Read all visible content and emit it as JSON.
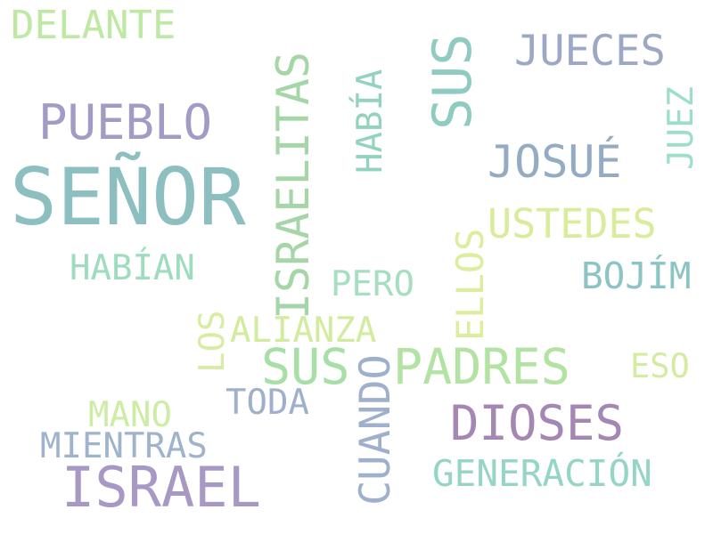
{
  "words": [
    {
      "id": "senor",
      "text": "SEÑOR",
      "color": "#8dbfc1"
    },
    {
      "id": "israel",
      "text": "ISRAEL",
      "color": "#a898c4"
    },
    {
      "id": "israelitas",
      "text": "ISRAELITAS",
      "color": "#a6d6a8"
    },
    {
      "id": "sus_h",
      "text": "SUS",
      "color": "#a7dfa7"
    },
    {
      "id": "padres",
      "text": "PADRES",
      "color": "#b3e3a2"
    },
    {
      "id": "sus_v",
      "text": "SUS",
      "color": "#8fcbc0"
    },
    {
      "id": "dioses",
      "text": "DIOSES",
      "color": "#a487b3"
    },
    {
      "id": "pueblo",
      "text": "PUEBLO",
      "color": "#a39bc4"
    },
    {
      "id": "josue",
      "text": "JOSUÉ",
      "color": "#94abc4"
    },
    {
      "id": "jueces",
      "text": "JUECES",
      "color": "#9ca8c6"
    },
    {
      "id": "ustedes",
      "text": "USTEDES",
      "color": "#d8ec9a"
    },
    {
      "id": "delante",
      "text": "DELANTE",
      "color": "#bee9a4"
    },
    {
      "id": "cuando",
      "text": "CUANDO",
      "color": "#9fb0cc"
    },
    {
      "id": "generacion",
      "text": "GENERACIÓN",
      "color": "#94d5c3"
    },
    {
      "id": "bojim",
      "text": "BOJÍM",
      "color": "#8cc4c4"
    },
    {
      "id": "ellos",
      "text": "ELLOS",
      "color": "#dcee9e"
    },
    {
      "id": "habian",
      "text": "HABÍAN",
      "color": "#9ddcbe"
    },
    {
      "id": "habia",
      "text": "HABÍA",
      "color": "#93d3bd"
    },
    {
      "id": "pero",
      "text": "PERO",
      "color": "#a6dfbf"
    },
    {
      "id": "alianza",
      "text": "ALIANZA",
      "color": "#d2ec9f"
    },
    {
      "id": "mientras",
      "text": "MIENTRAS",
      "color": "#9fb3cc"
    },
    {
      "id": "mano",
      "text": "MANO",
      "color": "#cdeda4"
    },
    {
      "id": "toda",
      "text": "TODA",
      "color": "#9fb0cc"
    },
    {
      "id": "eso",
      "text": "ESO",
      "color": "#d4eba2"
    },
    {
      "id": "juez",
      "text": "JUEZ",
      "color": "#9ddfc6"
    },
    {
      "id": "los",
      "text": "LOS",
      "color": "#d6eda2"
    }
  ]
}
